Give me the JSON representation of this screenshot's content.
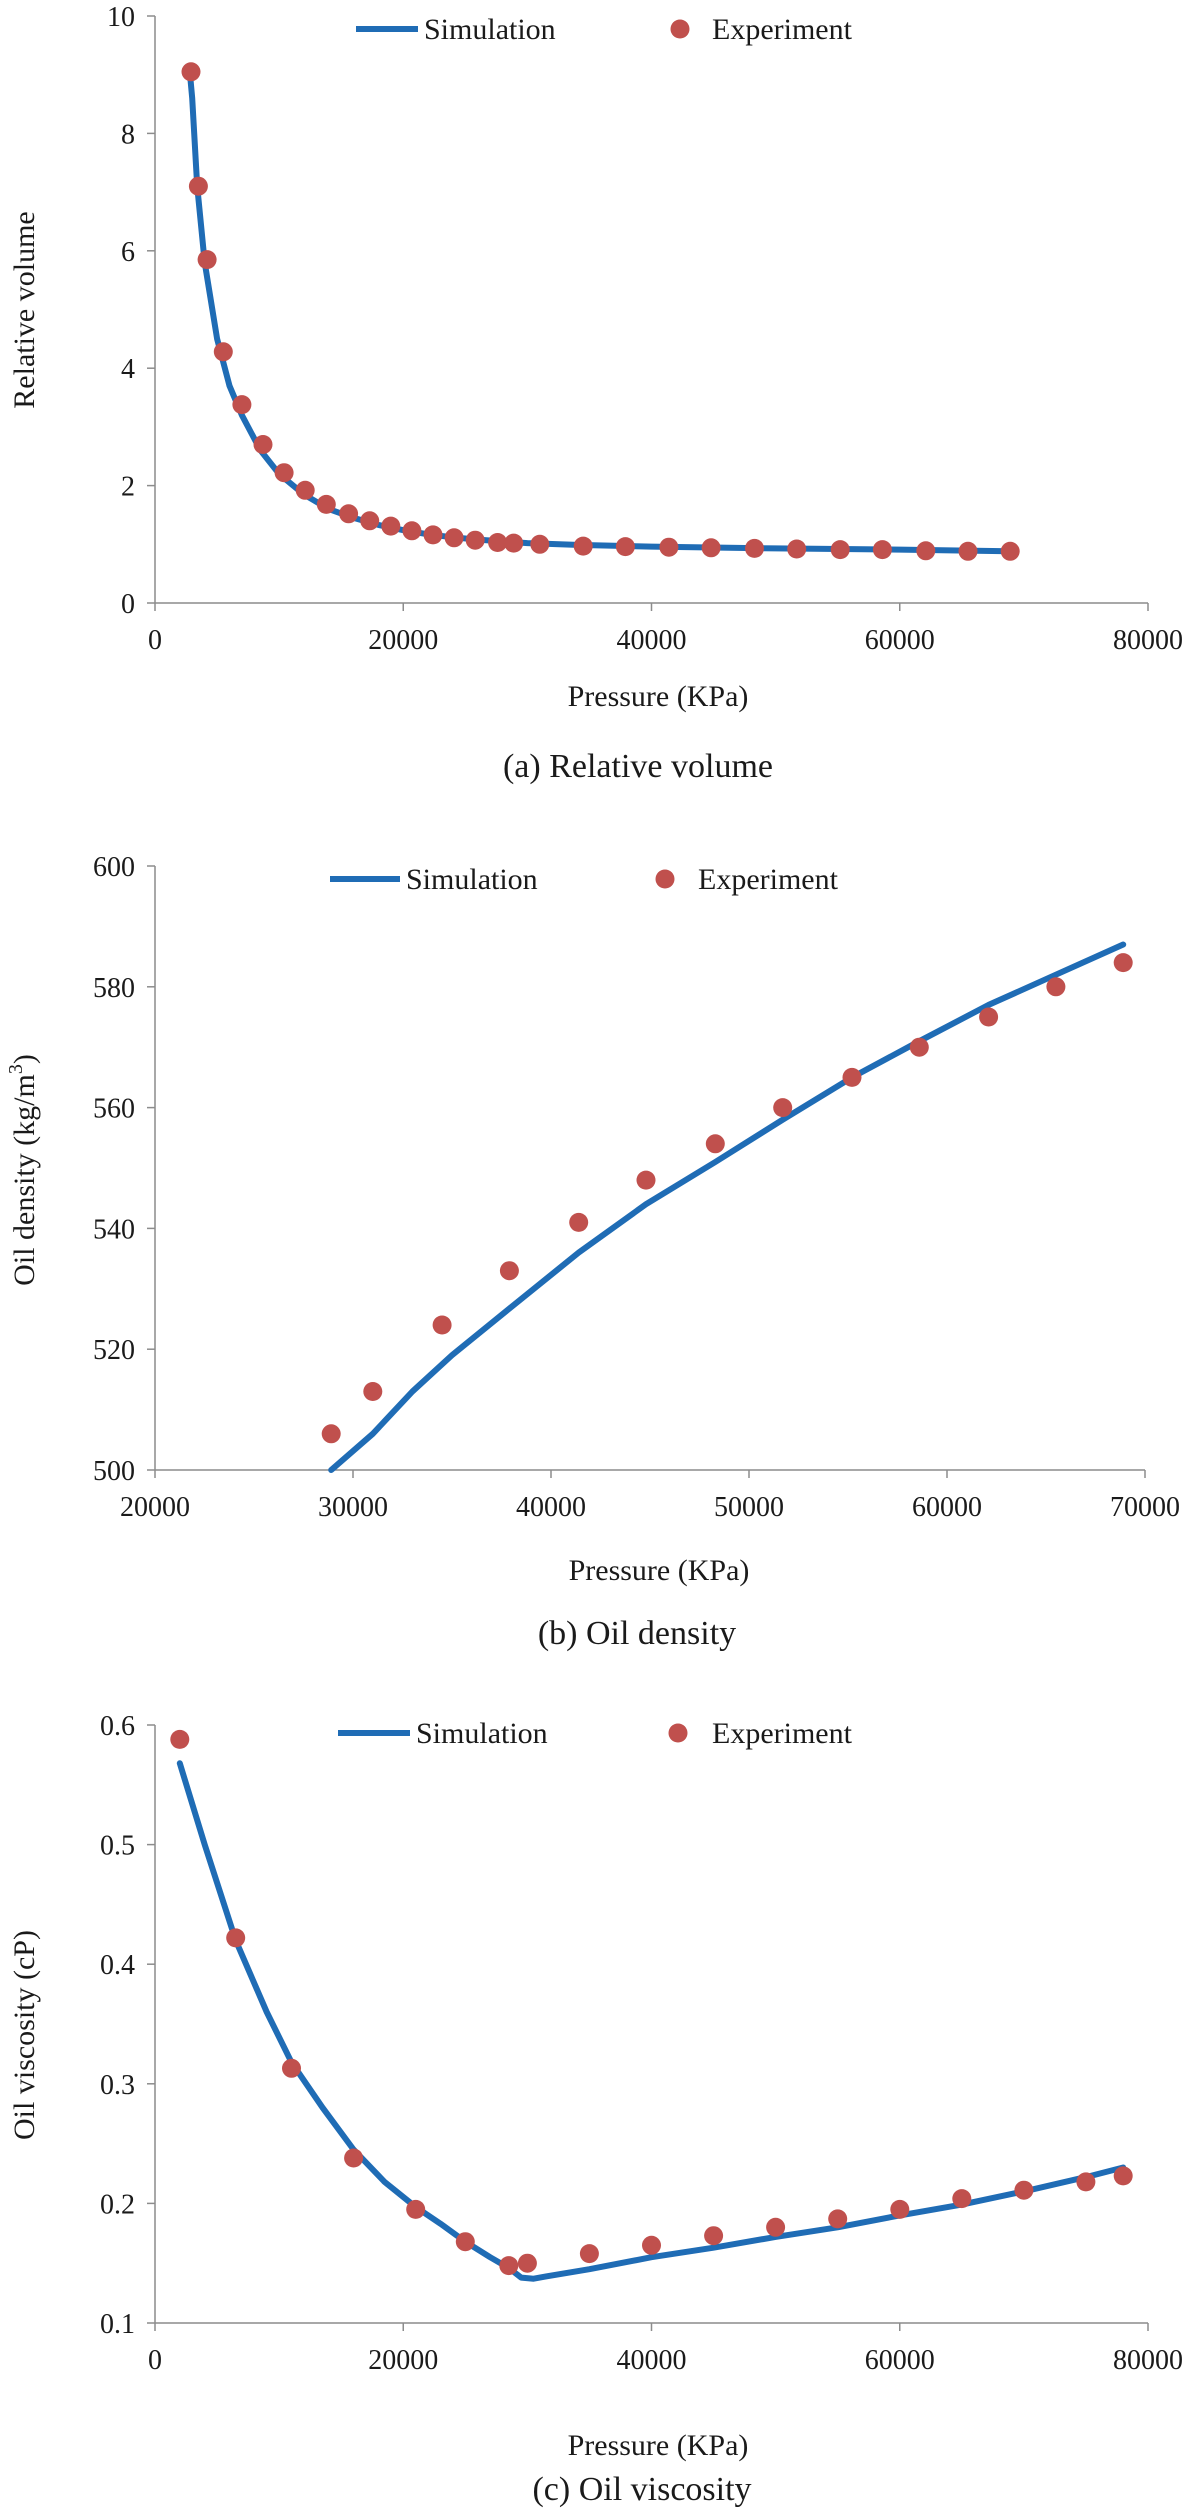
{
  "chart_data": [
    {
      "type": "line+scatter",
      "caption": "(a) Relative volume",
      "xlabel": "Pressure (KPa)",
      "ylabel": "Relative volume",
      "xlim": [
        0,
        80000
      ],
      "ylim": [
        0,
        10
      ],
      "xticks": [
        "0",
        "20000",
        "40000",
        "60000",
        "80000"
      ],
      "yticks": [
        "0",
        "2",
        "4",
        "6",
        "8",
        "10"
      ],
      "legend": [
        "Simulation",
        "Experiment"
      ],
      "series": [
        {
          "name": "Simulation",
          "kind": "line",
          "x": [
            2800,
            3000,
            3400,
            4000,
            5000,
            6000,
            7000,
            8500,
            10000,
            12000,
            14000,
            16000,
            18000,
            20000,
            22000,
            24000,
            26000,
            28000,
            30000,
            34000,
            40000,
            50000,
            60000,
            68800
          ],
          "y": [
            9.05,
            8.6,
            7.1,
            5.8,
            4.5,
            3.7,
            3.2,
            2.6,
            2.2,
            1.85,
            1.6,
            1.45,
            1.33,
            1.24,
            1.17,
            1.12,
            1.08,
            1.05,
            1.02,
            0.99,
            0.96,
            0.93,
            0.91,
            0.88
          ]
        },
        {
          "name": "Experiment",
          "kind": "scatter",
          "x": [
            2900,
            3500,
            4200,
            5500,
            7000,
            8700,
            10400,
            12100,
            13800,
            15600,
            17300,
            19000,
            20700,
            22400,
            24100,
            25800,
            27600,
            28900,
            31000,
            34500,
            37900,
            41400,
            44800,
            48300,
            51700,
            55200,
            58600,
            62100,
            65500,
            68900
          ],
          "y": [
            9.05,
            7.1,
            5.85,
            4.28,
            3.38,
            2.7,
            2.22,
            1.92,
            1.68,
            1.52,
            1.4,
            1.31,
            1.23,
            1.16,
            1.11,
            1.07,
            1.03,
            1.02,
            1.0,
            0.97,
            0.96,
            0.95,
            0.94,
            0.93,
            0.92,
            0.91,
            0.91,
            0.89,
            0.88,
            0.88
          ]
        }
      ]
    },
    {
      "type": "line+scatter",
      "caption": "(b) Oil density",
      "xlabel": "Pressure (KPa)",
      "ylabel": "Oil density (kg/m",
      "ylabel_sup": "3",
      "ylabel_end": ")",
      "xlim": [
        20000,
        70000
      ],
      "ylim": [
        500,
        600
      ],
      "xticks": [
        "20000",
        "30000",
        "40000",
        "50000",
        "60000",
        "70000"
      ],
      "yticks": [
        "500",
        "520",
        "540",
        "560",
        "580",
        "600"
      ],
      "legend": [
        "Simulation",
        "Experiment"
      ],
      "series": [
        {
          "name": "Simulation",
          "kind": "line",
          "x": [
            28900,
            31000,
            33000,
            35000,
            38000,
            41400,
            44800,
            48300,
            51700,
            55200,
            58600,
            62100,
            65500,
            68900
          ],
          "y": [
            500,
            506,
            513,
            519,
            527,
            536,
            544,
            551,
            558,
            565,
            571,
            577,
            582,
            587
          ]
        },
        {
          "name": "Experiment",
          "kind": "scatter",
          "x": [
            28900,
            31000,
            34500,
            37900,
            41400,
            44800,
            48300,
            51700,
            55200,
            58600,
            62100,
            65500,
            68900
          ],
          "y": [
            506,
            513,
            524,
            533,
            541,
            548,
            554,
            560,
            565,
            570,
            575,
            580,
            584
          ]
        }
      ]
    },
    {
      "type": "line+scatter",
      "caption": "(c) Oil viscosity",
      "xlabel": "Pressure (KPa)",
      "ylabel": "Oil viscosity (cP)",
      "xlim": [
        0,
        80000
      ],
      "ylim": [
        0.1,
        0.6
      ],
      "xticks": [
        "0",
        "20000",
        "40000",
        "60000",
        "80000"
      ],
      "yticks": [
        "0.1",
        "0.2",
        "0.3",
        "0.4",
        "0.5",
        "0.6"
      ],
      "legend": [
        "Simulation",
        "Experiment"
      ],
      "series": [
        {
          "name": "Simulation",
          "kind": "line",
          "x": [
            2000,
            4000,
            6500,
            9000,
            11000,
            13500,
            16000,
            18500,
            21000,
            23000,
            25000,
            27000,
            28500,
            29500,
            30500,
            31500,
            35000,
            40000,
            45000,
            50000,
            55000,
            60000,
            65000,
            70000,
            75000,
            78000
          ],
          "y": [
            0.568,
            0.5,
            0.42,
            0.36,
            0.318,
            0.28,
            0.245,
            0.218,
            0.197,
            0.183,
            0.168,
            0.155,
            0.146,
            0.138,
            0.137,
            0.139,
            0.145,
            0.155,
            0.163,
            0.172,
            0.18,
            0.19,
            0.199,
            0.21,
            0.222,
            0.23
          ]
        },
        {
          "name": "Experiment",
          "kind": "scatter",
          "x": [
            2000,
            6500,
            11000,
            16000,
            21000,
            25000,
            28500,
            30000,
            35000,
            40000,
            45000,
            50000,
            55000,
            60000,
            65000,
            70000,
            75000,
            78000
          ],
          "y": [
            0.588,
            0.422,
            0.313,
            0.238,
            0.195,
            0.168,
            0.148,
            0.15,
            0.158,
            0.165,
            0.173,
            0.18,
            0.187,
            0.195,
            0.204,
            0.211,
            0.218,
            0.223
          ]
        }
      ]
    }
  ]
}
